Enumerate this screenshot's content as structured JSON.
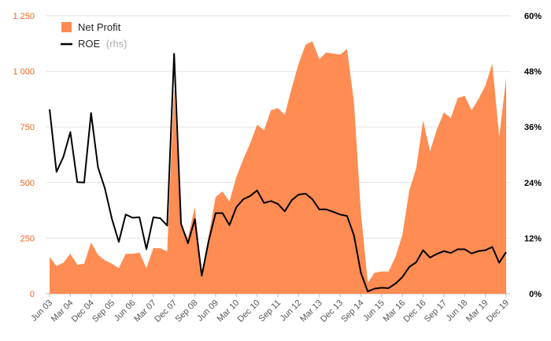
{
  "chart_data": {
    "type": "area",
    "colors": {
      "net_profit": "#ff8c52",
      "roe": "#000000",
      "axis_left": "#f26522"
    },
    "legend": {
      "placement": "top-left",
      "net_profit_label": "Net Profit",
      "roe_label": "ROE",
      "roe_suffix": "(rhs)"
    },
    "y_left": {
      "range": [
        0,
        1250
      ],
      "ticks": [
        0,
        250,
        500,
        750,
        1000,
        1250
      ],
      "tick_labels": [
        "0",
        "250",
        "500",
        "750",
        "1 000",
        "1 250"
      ]
    },
    "y_right": {
      "range": [
        0,
        60
      ],
      "ticks": [
        0,
        12,
        24,
        36,
        48,
        60
      ],
      "tick_labels": [
        "0%",
        "12%",
        "24%",
        "36%",
        "48%",
        "60%"
      ]
    },
    "x_tick_labels": [
      "Jun 03",
      "Mar 04",
      "Dec 04",
      "Sep 05",
      "Jun 06",
      "Mar 07",
      "Dec 07",
      "Sep 08",
      "Jun 09",
      "Mar 10",
      "Dec 10",
      "Sep 11",
      "Jun 12",
      "Mar 13",
      "Dec 13",
      "Sep 14",
      "Jun 15",
      "Mar 16",
      "Dec 16",
      "Sep 17",
      "Jun 18",
      "Mar 19",
      "Dec 19"
    ],
    "series": [
      {
        "name": "Net Profit",
        "axis": "left",
        "type": "area",
        "values": [
          165,
          125,
          140,
          180,
          130,
          135,
          230,
          175,
          150,
          135,
          115,
          180,
          180,
          185,
          115,
          205,
          205,
          190,
          920,
          310,
          250,
          390,
          85,
          260,
          435,
          460,
          415,
          525,
          605,
          675,
          760,
          735,
          825,
          835,
          805,
          925,
          1035,
          1120,
          1135,
          1055,
          1085,
          1080,
          1075,
          1100,
          860,
          365,
          50,
          95,
          100,
          100,
          165,
          265,
          465,
          565,
          780,
          640,
          740,
          815,
          790,
          880,
          890,
          825,
          875,
          935,
          1035,
          705,
          970
        ]
      },
      {
        "name": "ROE",
        "axis": "right",
        "type": "line",
        "values": [
          39.8,
          26.3,
          29.6,
          34.9,
          24.1,
          24.0,
          39.0,
          27.3,
          22.7,
          16.2,
          11.2,
          17.1,
          16.4,
          16.5,
          9.6,
          16.5,
          16.3,
          14.7,
          51.8,
          15.1,
          10.9,
          16.1,
          3.9,
          11.4,
          17.4,
          17.4,
          14.8,
          18.7,
          20.4,
          21.1,
          22.3,
          19.6,
          20.0,
          19.4,
          17.8,
          20.2,
          21.4,
          21.6,
          20.4,
          18.2,
          18.2,
          17.7,
          17.1,
          16.8,
          12.6,
          4.5,
          0.5,
          1.1,
          1.3,
          1.2,
          2.2,
          3.6,
          5.8,
          6.8,
          9.4,
          7.8,
          8.6,
          9.2,
          8.8,
          9.6,
          9.6,
          8.7,
          9.2,
          9.4,
          10.1,
          6.7,
          9.0
        ]
      }
    ]
  }
}
